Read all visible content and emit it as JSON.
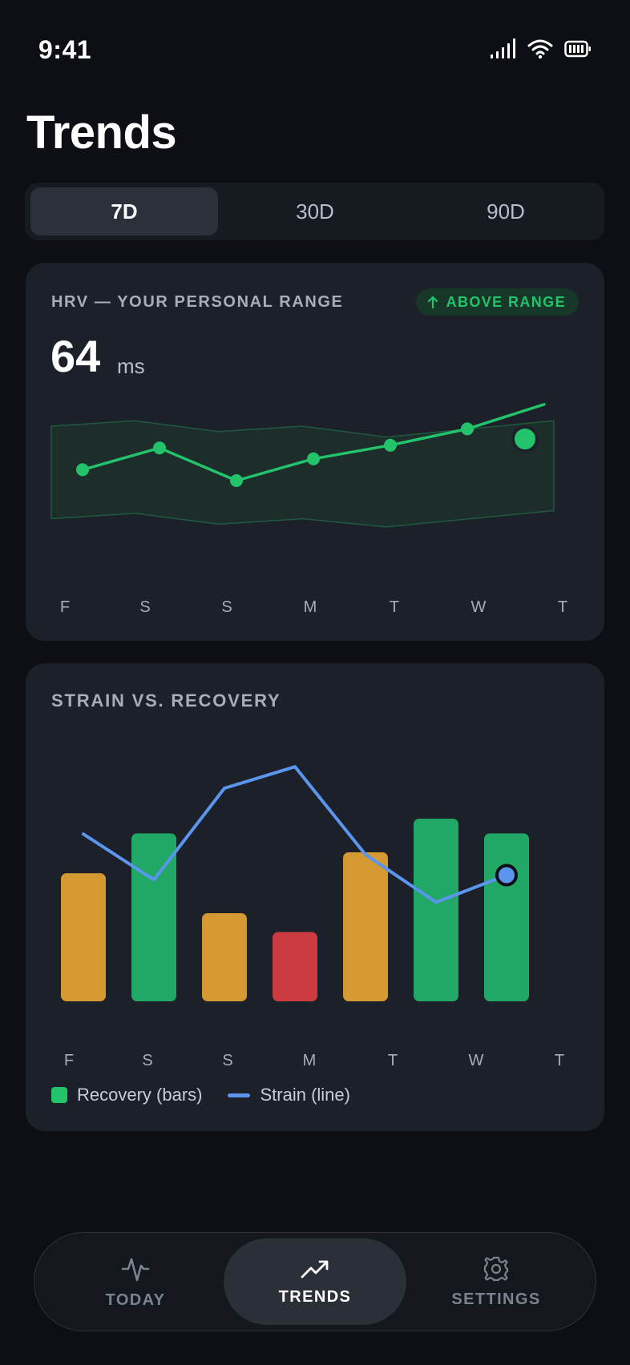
{
  "status_bar": {
    "time": "9:41"
  },
  "header": {
    "title": "Trends"
  },
  "range_tabs": [
    {
      "label": "7D",
      "active": true
    },
    {
      "label": "30D",
      "active": false
    },
    {
      "label": "90D",
      "active": false
    }
  ],
  "hrv_card": {
    "label": "HRV — YOUR PERSONAL RANGE",
    "badge": "ABOVE RANGE",
    "badge_icon": "arrow-up-icon",
    "value": "64",
    "unit": "ms"
  },
  "strain_card": {
    "label": "STRAIN VS. RECOVERY",
    "legend": {
      "recovery": "Recovery (bars)",
      "strain": "Strain (line)"
    }
  },
  "chart_data": [
    {
      "type": "line",
      "categories": [
        "F",
        "S",
        "S",
        "M",
        "T",
        "W",
        "T"
      ],
      "series": [
        {
          "values": [
            52,
            56,
            50,
            54,
            56.5,
            59.5,
            64
          ]
        }
      ],
      "band": {
        "upper": [
          60,
          61,
          59,
          60,
          58,
          59.5,
          61
        ],
        "lower": [
          43,
          44,
          42,
          43,
          41.5,
          43,
          44.5
        ]
      },
      "band_label": "personal range",
      "highlight_last": true
    },
    {
      "type": "bar",
      "categories": [
        "F",
        "S",
        "S",
        "M",
        "T",
        "W",
        "T"
      ],
      "series": [
        {
          "name": "Recovery (bars)",
          "values": [
            61,
            80,
            42,
            33,
            71,
            87,
            80
          ],
          "colors": [
            "#d49a31",
            "#22a866",
            "#d49a31",
            "#cc3b41",
            "#d49a31",
            "#22a866",
            "#22a866"
          ]
        },
        {
          "name": "Strain (line)",
          "values": [
            14.3,
            9.4,
            19.2,
            21.5,
            12.1,
            7.0,
            9.9
          ]
        }
      ],
      "colors": {
        "recovery_good": "#22a866",
        "recovery_medium": "#d49a31",
        "recovery_low": "#cc3b41",
        "strain": "#5b95ee"
      }
    }
  ],
  "tabbar": [
    {
      "label": "TODAY",
      "icon": "pulse-icon",
      "active": false
    },
    {
      "label": "TRENDS",
      "icon": "trend-up-icon",
      "active": true
    },
    {
      "label": "SETTINGS",
      "icon": "gear-icon",
      "active": false
    }
  ]
}
